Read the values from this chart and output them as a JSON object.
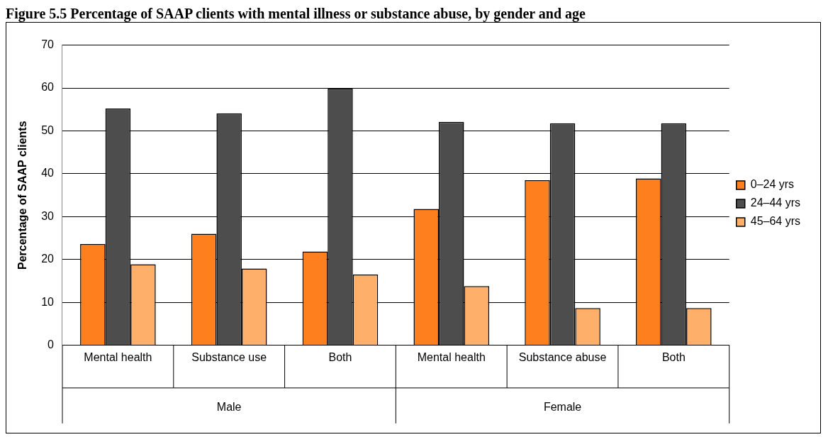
{
  "chart_data": {
    "type": "bar",
    "title": "Figure 5.5 Percentage of SAAP clients with mental illness or substance abuse, by gender and age",
    "ylabel": "Percentage of SAAP clients",
    "categories": [
      "Mental health",
      "Substance use",
      "Both",
      "Mental health",
      "Substance abuse",
      "Both"
    ],
    "annotations": [
      "Male",
      "Female"
    ],
    "series": [
      {
        "name": "0–24 yrs",
        "color": "#fd7f1e",
        "values": [
          23.6,
          26.0,
          21.9,
          31.8,
          38.5,
          38.9
        ]
      },
      {
        "name": "24–44 yrs",
        "color": "#4d4d4d",
        "values": [
          55.2,
          54.1,
          59.9,
          52.1,
          51.8,
          51.8
        ]
      },
      {
        "name": "45–64 yrs",
        "color": "#feb06a",
        "values": [
          18.9,
          17.9,
          16.5,
          13.8,
          8.7,
          8.7
        ]
      }
    ],
    "ylim": [
      0,
      70
    ],
    "yticks": [
      0,
      10,
      20,
      30,
      40,
      50,
      60,
      70
    ],
    "grid": "y",
    "legend": "right"
  }
}
